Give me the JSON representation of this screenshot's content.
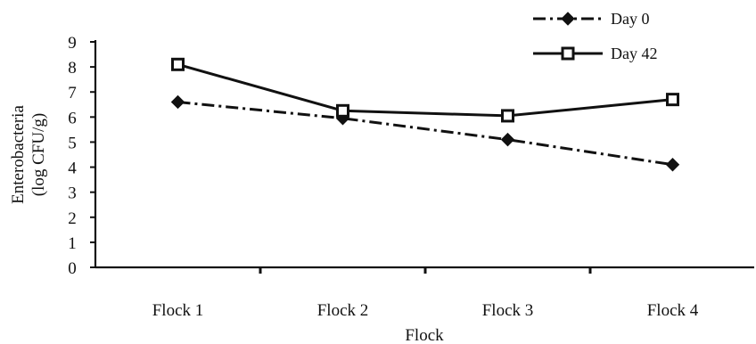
{
  "chart_data": {
    "type": "line",
    "categories": [
      "Flock 1",
      "Flock 2",
      "Flock 3",
      "Flock 4"
    ],
    "series": [
      {
        "name": "Day 0",
        "values": [
          6.6,
          5.95,
          5.1,
          4.1
        ],
        "line_style": "dashed",
        "marker": "diamond",
        "color": "#111111"
      },
      {
        "name": "Day 42",
        "values": [
          8.1,
          6.25,
          6.05,
          6.7
        ],
        "line_style": "solid",
        "marker": "open-square",
        "color": "#111111"
      }
    ],
    "xlabel": "Flock",
    "ylabel_lines": [
      "Enterobacteria",
      "(log CFU/g)"
    ],
    "ylim": [
      0,
      9
    ],
    "yticks": [
      0,
      1,
      2,
      3,
      4,
      5,
      6,
      7,
      8,
      9
    ],
    "grid": false,
    "legend": "top-right"
  }
}
